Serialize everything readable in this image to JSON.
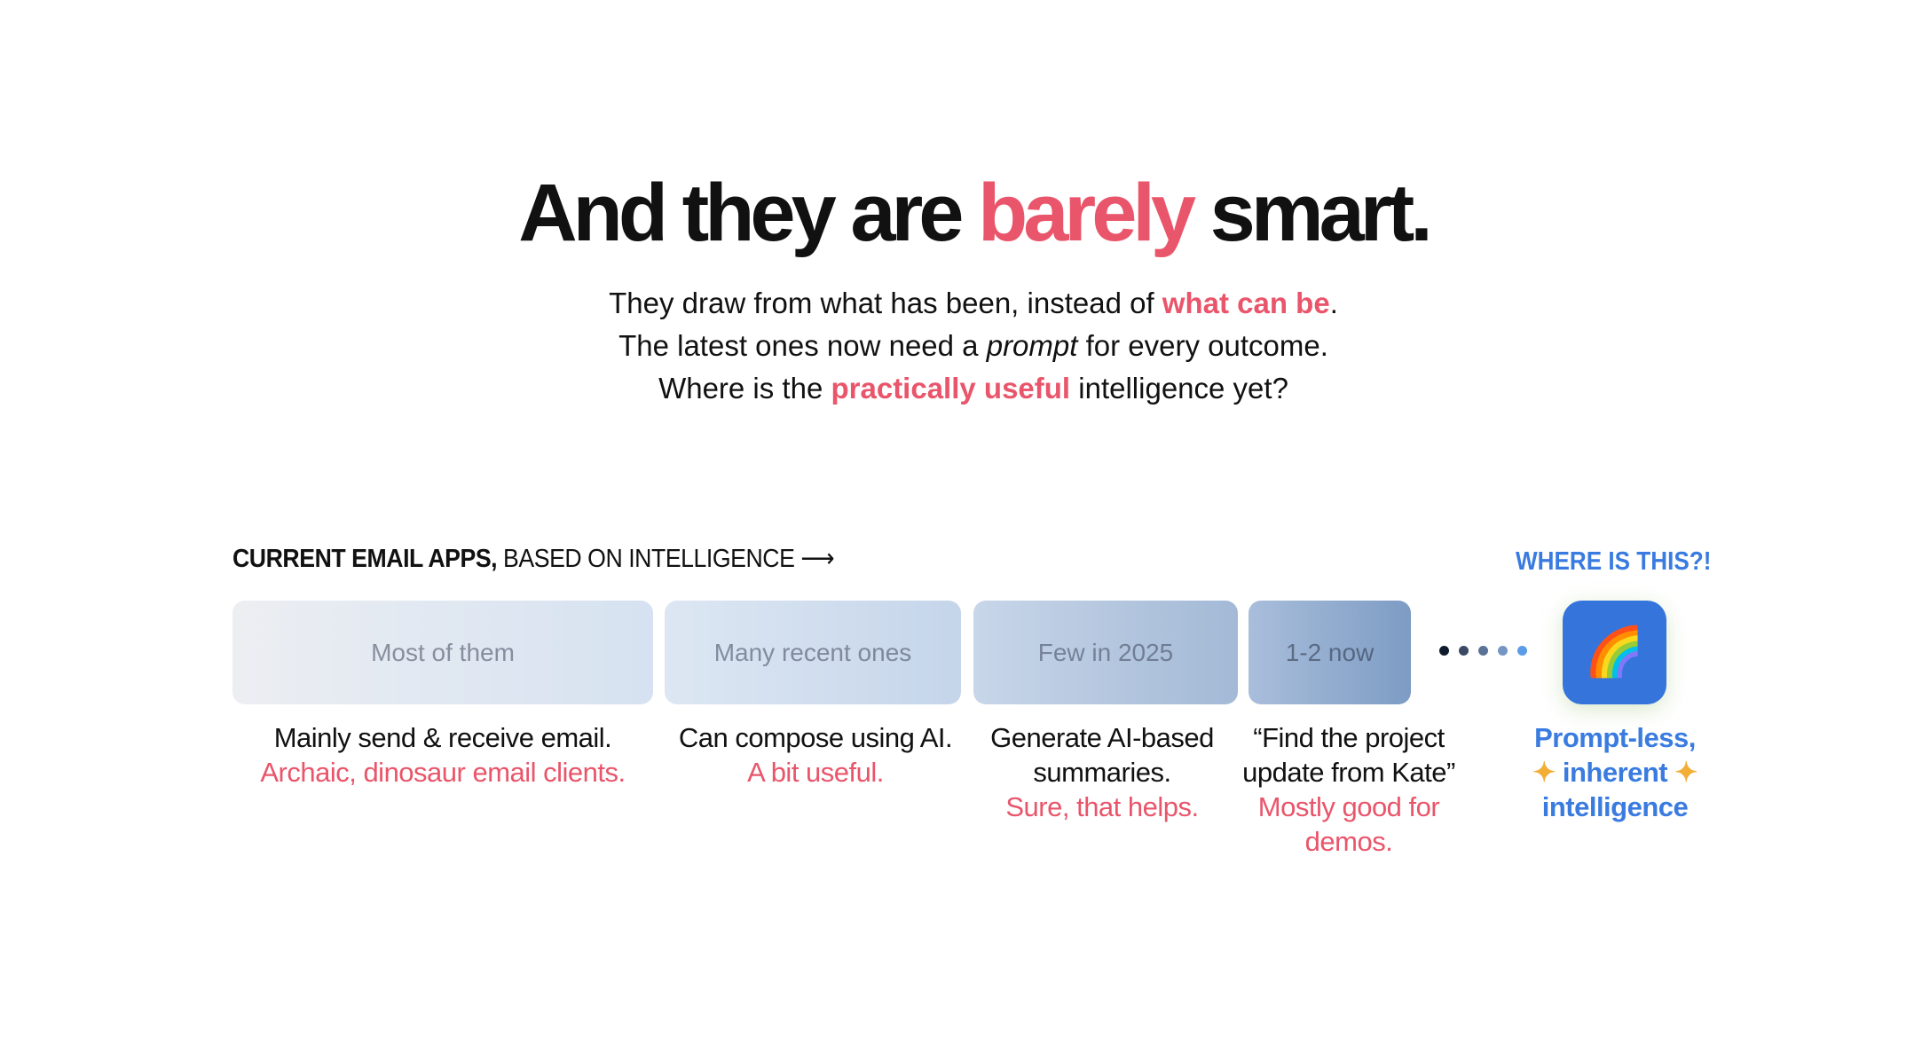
{
  "title": {
    "part1": "And they are ",
    "highlight": "barely",
    "part2": " smart."
  },
  "subtitle": {
    "line1": {
      "a": "They draw from what has been, instead of ",
      "highlight": "what can be",
      "b": "."
    },
    "line2": {
      "a": "The latest ones now need a ",
      "italic": "prompt",
      "b": " for every outcome."
    },
    "line3": {
      "a": "Where is the ",
      "highlight": "practically useful",
      "b": " intelligence yet?"
    }
  },
  "section_label": {
    "bold": "CURRENT EMAIL APPS,",
    "rest": " BASED ON INTELLIGENCE",
    "arrow": "⟶"
  },
  "where_label": "WHERE IS THIS?!",
  "boxes": [
    {
      "label": "Most of them",
      "description": "Mainly send & receive email.",
      "verdict": "Archaic, dinosaur email clients."
    },
    {
      "label": "Many recent ones",
      "description": "Can compose using AI.",
      "verdict": "A bit useful."
    },
    {
      "label": "Few in 2025",
      "description": "Generate AI-based summaries.",
      "verdict": "Sure, that helps."
    },
    {
      "label": "1-2 now",
      "description": "“Find the project update from Kate”",
      "verdict": "Mostly good for demos."
    }
  ],
  "ideal": {
    "icon": "rainbow-icon",
    "emoji": "🌈",
    "line1": "Prompt-less,",
    "star": "✦",
    "line2": "inherent",
    "line3": "intelligence"
  },
  "dot_colors": [
    "#0f1a2b",
    "#3a4a64",
    "#5a7296",
    "#7595c4",
    "#5c9be6"
  ],
  "colors": {
    "red": "#e9556a",
    "blue": "#3a7be0",
    "icon_bg": "#3574db"
  }
}
